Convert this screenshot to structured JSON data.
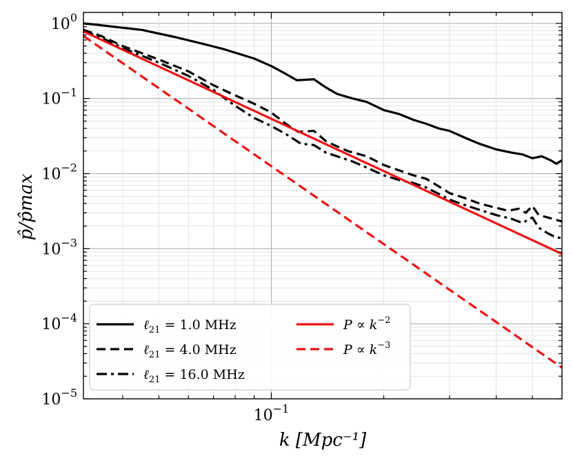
{
  "chart_data": {
    "type": "line",
    "title": "",
    "xlabel": "k [Mpc⁻¹]",
    "ylabel": "p̂/p̂max",
    "xscale": "log",
    "yscale": "log",
    "xlim": [
      0.0314,
      0.6
    ],
    "ylim": [
      1e-05,
      1.4
    ],
    "grid": true,
    "legend_position": "lower-left",
    "x_tick_labels": [
      {
        "value": 0.1,
        "base": "10",
        "exp": "−1"
      }
    ],
    "y_tick_labels": [
      {
        "value": 1,
        "base": "10",
        "exp": "0"
      },
      {
        "value": 0.1,
        "base": "10",
        "exp": "−1"
      },
      {
        "value": 0.01,
        "base": "10",
        "exp": "−2"
      },
      {
        "value": 0.001,
        "base": "10",
        "exp": "−3"
      },
      {
        "value": 0.0001,
        "base": "10",
        "exp": "−4"
      },
      {
        "value": 1e-05,
        "base": "10",
        "exp": "−5"
      }
    ],
    "series": [
      {
        "name": "ℓ₂₁ = 1.0 MHz",
        "legend": {
          "sym": "ℓ",
          "sub": "21",
          "rest": " = 1.0 MHz"
        },
        "color": "#000000",
        "dash": "solid",
        "points": [
          [
            0.0314,
            1.0
          ],
          [
            0.034,
            0.96
          ],
          [
            0.038,
            0.9
          ],
          [
            0.045,
            0.82
          ],
          [
            0.055,
            0.66
          ],
          [
            0.065,
            0.54
          ],
          [
            0.075,
            0.45
          ],
          [
            0.09,
            0.34
          ],
          [
            0.1,
            0.27
          ],
          [
            0.108,
            0.22
          ],
          [
            0.117,
            0.175
          ],
          [
            0.13,
            0.18
          ],
          [
            0.14,
            0.14
          ],
          [
            0.15,
            0.115
          ],
          [
            0.165,
            0.1
          ],
          [
            0.18,
            0.09
          ],
          [
            0.2,
            0.07
          ],
          [
            0.22,
            0.062
          ],
          [
            0.24,
            0.052
          ],
          [
            0.26,
            0.046
          ],
          [
            0.28,
            0.04
          ],
          [
            0.3,
            0.037
          ],
          [
            0.33,
            0.03
          ],
          [
            0.36,
            0.025
          ],
          [
            0.4,
            0.021
          ],
          [
            0.44,
            0.019
          ],
          [
            0.47,
            0.018
          ],
          [
            0.5,
            0.016
          ],
          [
            0.53,
            0.017
          ],
          [
            0.56,
            0.015
          ],
          [
            0.58,
            0.0135
          ],
          [
            0.6,
            0.015
          ]
        ]
      },
      {
        "name": "ℓ₂₁ = 4.0 MHz",
        "legend": {
          "sym": "ℓ",
          "sub": "21",
          "rest": " = 4.0 MHz"
        },
        "color": "#000000",
        "dash": "dashed",
        "points": [
          [
            0.0314,
            0.82
          ],
          [
            0.035,
            0.68
          ],
          [
            0.04,
            0.5
          ],
          [
            0.05,
            0.33
          ],
          [
            0.06,
            0.23
          ],
          [
            0.07,
            0.15
          ],
          [
            0.08,
            0.11
          ],
          [
            0.09,
            0.085
          ],
          [
            0.1,
            0.065
          ],
          [
            0.11,
            0.045
          ],
          [
            0.118,
            0.036
          ],
          [
            0.13,
            0.037
          ],
          [
            0.14,
            0.027
          ],
          [
            0.15,
            0.023
          ],
          [
            0.16,
            0.02
          ],
          [
            0.18,
            0.017
          ],
          [
            0.2,
            0.013
          ],
          [
            0.22,
            0.011
          ],
          [
            0.24,
            0.0095
          ],
          [
            0.26,
            0.0085
          ],
          [
            0.28,
            0.0068
          ],
          [
            0.3,
            0.0055
          ],
          [
            0.33,
            0.0047
          ],
          [
            0.36,
            0.004
          ],
          [
            0.4,
            0.0035
          ],
          [
            0.43,
            0.0032
          ],
          [
            0.46,
            0.0034
          ],
          [
            0.48,
            0.003
          ],
          [
            0.5,
            0.0037
          ],
          [
            0.52,
            0.0028
          ],
          [
            0.55,
            0.0026
          ],
          [
            0.6,
            0.0023
          ]
        ]
      },
      {
        "name": "ℓ₂₁ = 16.0 MHz",
        "legend": {
          "sym": "ℓ",
          "sub": "21",
          "rest": " = 16.0 MHz"
        },
        "color": "#000000",
        "dash": "dashdot",
        "points": [
          [
            0.0314,
            0.8
          ],
          [
            0.035,
            0.65
          ],
          [
            0.04,
            0.47
          ],
          [
            0.05,
            0.3
          ],
          [
            0.06,
            0.2
          ],
          [
            0.07,
            0.13
          ],
          [
            0.08,
            0.08
          ],
          [
            0.09,
            0.055
          ],
          [
            0.1,
            0.043
          ],
          [
            0.11,
            0.033
          ],
          [
            0.12,
            0.025
          ],
          [
            0.13,
            0.024
          ],
          [
            0.14,
            0.019
          ],
          [
            0.15,
            0.017
          ],
          [
            0.165,
            0.0145
          ],
          [
            0.18,
            0.012
          ],
          [
            0.2,
            0.0095
          ],
          [
            0.22,
            0.0082
          ],
          [
            0.24,
            0.0075
          ],
          [
            0.26,
            0.0065
          ],
          [
            0.28,
            0.0054
          ],
          [
            0.3,
            0.0045
          ],
          [
            0.33,
            0.0038
          ],
          [
            0.36,
            0.0033
          ],
          [
            0.4,
            0.0028
          ],
          [
            0.44,
            0.0025
          ],
          [
            0.47,
            0.0022
          ],
          [
            0.5,
            0.0026
          ],
          [
            0.52,
            0.0019
          ],
          [
            0.55,
            0.0016
          ],
          [
            0.58,
            0.0014
          ],
          [
            0.6,
            0.0014
          ]
        ]
      },
      {
        "name": "P ∝ k⁻²",
        "legend": {
          "text": "P ∝ k",
          "exp": "−2"
        },
        "color": "#ee1111",
        "dash": "solid",
        "points": [
          [
            0.0314,
            0.78
          ],
          [
            0.6,
            0.00085
          ]
        ]
      },
      {
        "name": "P ∝ k⁻³",
        "legend": {
          "text": "P ∝ k",
          "exp": "−3"
        },
        "color": "#ee1111",
        "dash": "dashed",
        "points": [
          [
            0.0314,
            0.68
          ],
          [
            0.6,
            2.6e-05
          ]
        ]
      }
    ]
  }
}
